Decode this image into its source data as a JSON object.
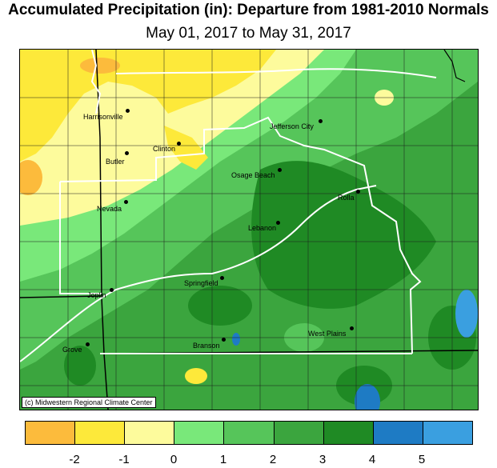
{
  "title": "Accumulated Precipitation (in): Departure from 1981-2010 Normals",
  "subtitle": "May 01, 2017 to May 31, 2017",
  "copyright": "(c) Midwestern Regional Climate Center",
  "colors": {
    "c_lt_minus2": "#fcbb3c",
    "c_minus2_minus1": "#fde93a",
    "c_minus1_0": "#fdfb9c",
    "c_0_1": "#79e87a",
    "c_1_2": "#56c55a",
    "c_2_3": "#3ba53e",
    "c_3_4": "#1f8a24",
    "c_4_5": "#1e7bc4",
    "c_gt_5": "#3a9fe0"
  },
  "legend": {
    "ticks": [
      "-2",
      "-1",
      "0",
      "1",
      "2",
      "3",
      "4",
      "5"
    ]
  },
  "cities": [
    {
      "name": "Harrisonville"
    },
    {
      "name": "Clinton"
    },
    {
      "name": "Butler"
    },
    {
      "name": "Jefferson City"
    },
    {
      "name": "Osage Beach"
    },
    {
      "name": "Nevada"
    },
    {
      "name": "Rolla"
    },
    {
      "name": "Lebanon"
    },
    {
      "name": "Springfield"
    },
    {
      "name": "Joplin"
    },
    {
      "name": "Branson"
    },
    {
      "name": "West Plains"
    },
    {
      "name": "Grove"
    }
  ]
}
